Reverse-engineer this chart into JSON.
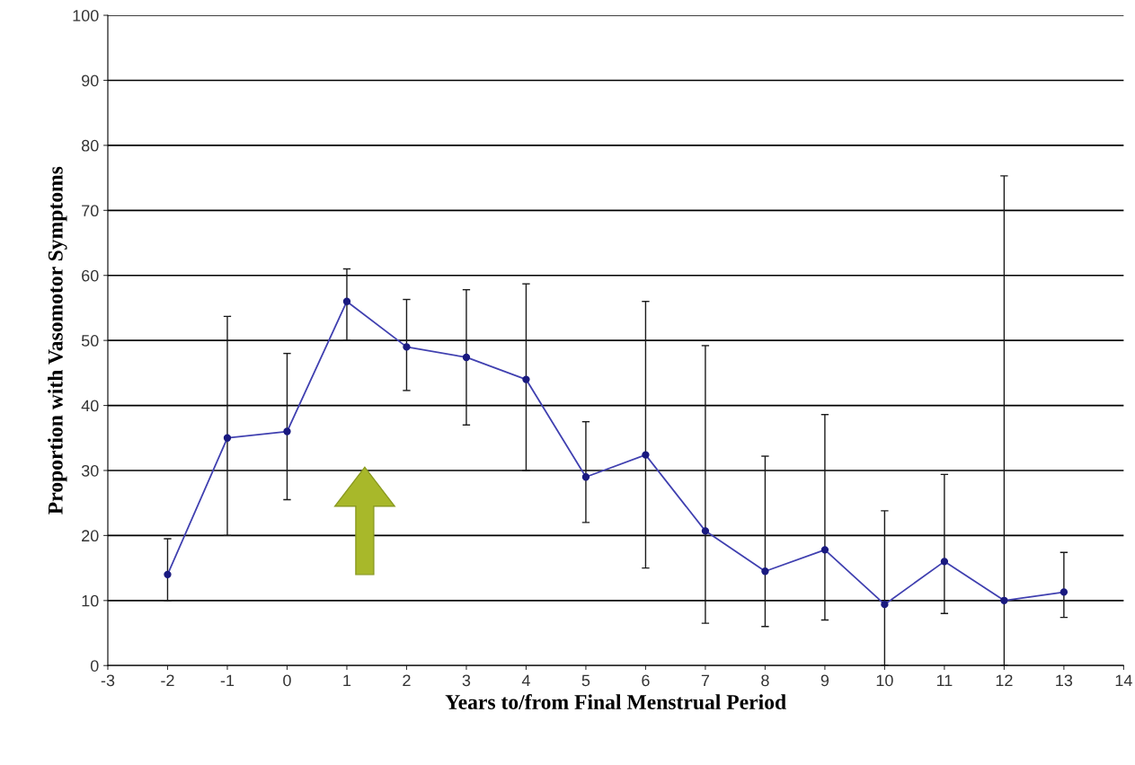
{
  "chart_data": {
    "type": "line",
    "xlabel": "Years to/from Final Menstrual Period",
    "ylabel": "Proportion with Vasomotor Symptoms",
    "x": [
      -2,
      -1,
      0,
      1,
      2,
      3,
      4,
      5,
      6,
      7,
      8,
      9,
      10,
      11,
      12,
      13
    ],
    "series": [
      {
        "color": "#4040b0",
        "values": [
          14,
          35,
          36,
          56,
          49,
          47.4,
          44,
          29,
          32.4,
          20.7,
          14.5,
          17.8,
          9.4,
          16,
          10,
          11.3
        ],
        "errors": [
          [
            10,
            19.5
          ],
          [
            20,
            53.7
          ],
          [
            25.5,
            48
          ],
          [
            50,
            61
          ],
          [
            42.3,
            56.3
          ],
          [
            37,
            57.8
          ],
          [
            30,
            58.7
          ],
          [
            22,
            37.5
          ],
          [
            15,
            56
          ],
          [
            6.5,
            49.2
          ],
          [
            6,
            32.2
          ],
          [
            7,
            38.6
          ],
          [
            0,
            23.8
          ],
          [
            8,
            29.4
          ],
          [
            0,
            75.3
          ],
          [
            7.4,
            17.4
          ]
        ]
      }
    ],
    "xlim": [
      -3,
      14
    ],
    "xticks": [
      -3,
      -2,
      -1,
      0,
      1,
      2,
      3,
      4,
      5,
      6,
      7,
      8,
      9,
      10,
      11,
      12,
      13,
      14
    ],
    "ylim": [
      0,
      100
    ],
    "yticks": [
      0,
      10,
      20,
      30,
      40,
      50,
      60,
      70,
      80,
      90,
      100
    ],
    "grid": "y",
    "marker": "circle",
    "line_style": "solid"
  }
}
